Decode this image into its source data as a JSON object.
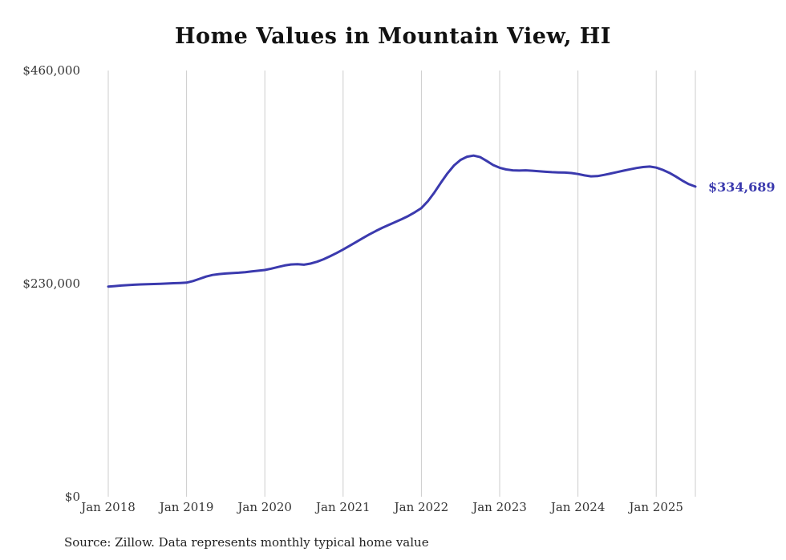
{
  "chart_data": {
    "type": "line",
    "title": "Home Values in Mountain View, HI",
    "series_name": "Monthly typical home value",
    "x_range": {
      "start": "2018-01",
      "end": "2025-07",
      "interval": "monthly"
    },
    "x_tick_labels": [
      "Jan 2018",
      "Jan 2019",
      "Jan 2020",
      "Jan 2021",
      "Jan 2022",
      "Jan 2023",
      "Jan 2024",
      "Jan 2025"
    ],
    "y_ticks": [
      {
        "label": "$0",
        "value": 0
      },
      {
        "label": "$230,000",
        "value": 230000
      },
      {
        "label": "$460,000",
        "value": 460000
      }
    ],
    "ylim": [
      0,
      460000
    ],
    "grid": "vertical-yearly",
    "legend": "none",
    "end_label": "$334,689",
    "end_value": 334689,
    "source": "Source: Zillow. Data represents monthly typical home value",
    "colors": {
      "line": "#3b3aae",
      "grid": "#cccccc",
      "text": "#333333",
      "title": "#111111"
    },
    "values": [
      226800,
      227300,
      227900,
      228400,
      228800,
      229100,
      229400,
      229600,
      229800,
      230100,
      230400,
      230700,
      231000,
      232800,
      235200,
      237600,
      239300,
      240300,
      240900,
      241300,
      241800,
      242400,
      243200,
      243900,
      244700,
      246200,
      247900,
      249500,
      250700,
      251000,
      250400,
      251600,
      253600,
      256300,
      259500,
      263000,
      266800,
      270800,
      274900,
      279000,
      283000,
      286700,
      290200,
      293400,
      296500,
      299600,
      303000,
      307000,
      311500,
      319000,
      328500,
      339000,
      349000,
      357500,
      363500,
      367000,
      368200,
      366500,
      362500,
      358000,
      355000,
      353200,
      352300,
      352000,
      352300,
      351800,
      351200,
      350700,
      350300,
      350000,
      349800,
      349300,
      348300,
      346800,
      345800,
      346000,
      347300,
      348800,
      350400,
      351900,
      353400,
      354800,
      355800,
      356300,
      355200,
      352800,
      349600,
      345600,
      341200,
      337300,
      334689
    ]
  }
}
